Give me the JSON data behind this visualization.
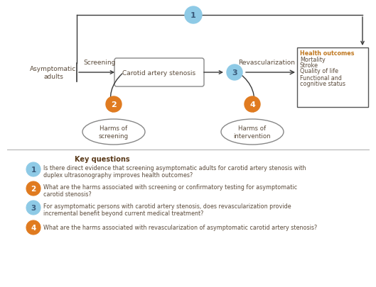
{
  "bg_color": "#ffffff",
  "text_color": "#5a4a3a",
  "arrow_color": "#3a3a3a",
  "box_edge_color": "#5a5a5a",
  "diagram": {
    "asymptomatic_label": "Asymptomatic\nadults",
    "screening_label": "Screening",
    "revascularization_label": "Revascularization",
    "carotid_box_label": "Carotid artery stenosis",
    "health_box_lines": [
      {
        "text": "Health outcomes",
        "bold": true
      },
      {
        "text": "Mortality",
        "bold": false
      },
      {
        "text": "Stroke",
        "bold": false
      },
      {
        "text": "Quality of life",
        "bold": false
      },
      {
        "text": "Functional and",
        "bold": false
      },
      {
        "text": "cognitive status",
        "bold": false
      }
    ],
    "harms_screening_label": "Harms of\nscreening",
    "harms_intervention_label": "Harms of\nintervention",
    "kq_colors": {
      "1": "#8ecae6",
      "2": "#e07b20",
      "3": "#8ecae6",
      "4": "#e07b20"
    },
    "kq_text_colors": {
      "1": "#3a5a7a",
      "2": "#ffffff",
      "3": "#3a5a7a",
      "4": "#ffffff"
    }
  },
  "key_questions": {
    "title": "Key questions",
    "title_color": "#8b4513",
    "questions": [
      {
        "num": "1",
        "color": "#8ecae6",
        "num_color": "#3a5a7a",
        "line1": "Is there direct evidence that screening asymptomatic adults for carotid artery stenosis with",
        "line2": "duplex ultrasonography improves health outcomes?"
      },
      {
        "num": "2",
        "color": "#e07b20",
        "num_color": "#ffffff",
        "line1": "What are the harms associated with screening or confirmatory testing for asymptomatic",
        "line2": "carotid stenosis?"
      },
      {
        "num": "3",
        "color": "#8ecae6",
        "num_color": "#3a5a7a",
        "line1": "For asymptomatic persons with carotid artery stenosis, does revascularization provide",
        "line2": "incremental benefit beyond current medical treatment?"
      },
      {
        "num": "4",
        "color": "#e07b20",
        "num_color": "#ffffff",
        "line1": "What are the harms associated with revascularization of asymptomatic carotid artery stenosis?",
        "line2": ""
      }
    ]
  }
}
